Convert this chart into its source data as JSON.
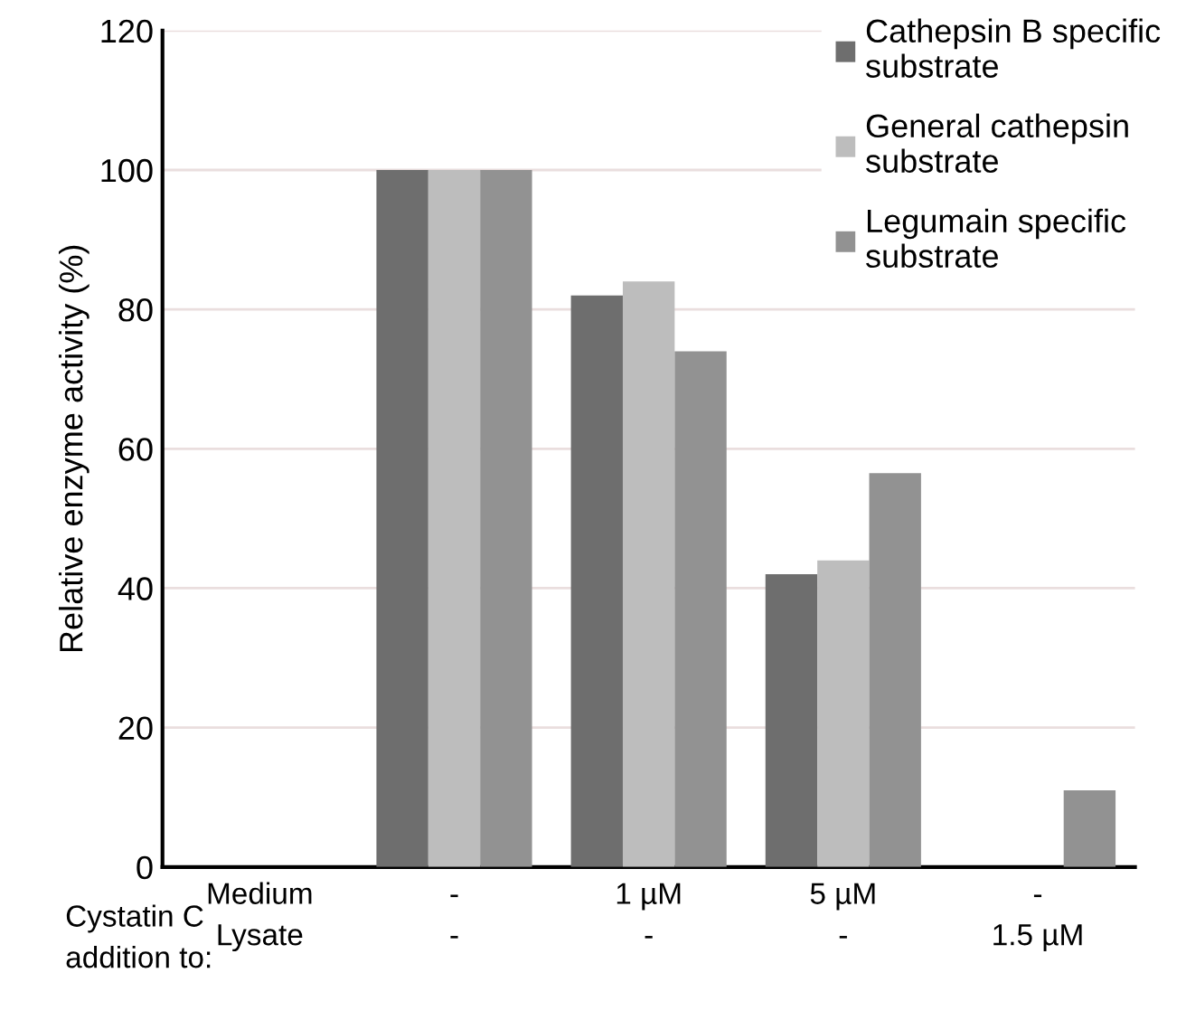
{
  "chart_data": {
    "type": "bar",
    "ylabel": "Relative enzyme activity (%)",
    "categories": [
      "Medium\nLysate",
      "-\n-",
      "1 µM\n-",
      "5 µM\n-",
      "-\n1.5 µM"
    ],
    "series": [
      {
        "name": "Cathepsin B specific\nsubstrate",
        "color": "#6e6e6e",
        "values": [
          null,
          100,
          82,
          42,
          null
        ]
      },
      {
        "name": "General cathepsin\nsubstrate",
        "color": "#bdbdbd",
        "values": [
          null,
          100,
          84,
          44,
          null
        ]
      },
      {
        "name": "Legumain specific\nsubstrate",
        "color": "#929292",
        "values": [
          null,
          100,
          74,
          56.5,
          11
        ]
      }
    ],
    "ylim": [
      0,
      120
    ],
    "yticks": [
      0,
      20,
      40,
      60,
      80,
      100,
      120
    ],
    "grid": "y",
    "legend": "top right",
    "annotations": [
      "Cystatin C\naddition to:"
    ]
  }
}
